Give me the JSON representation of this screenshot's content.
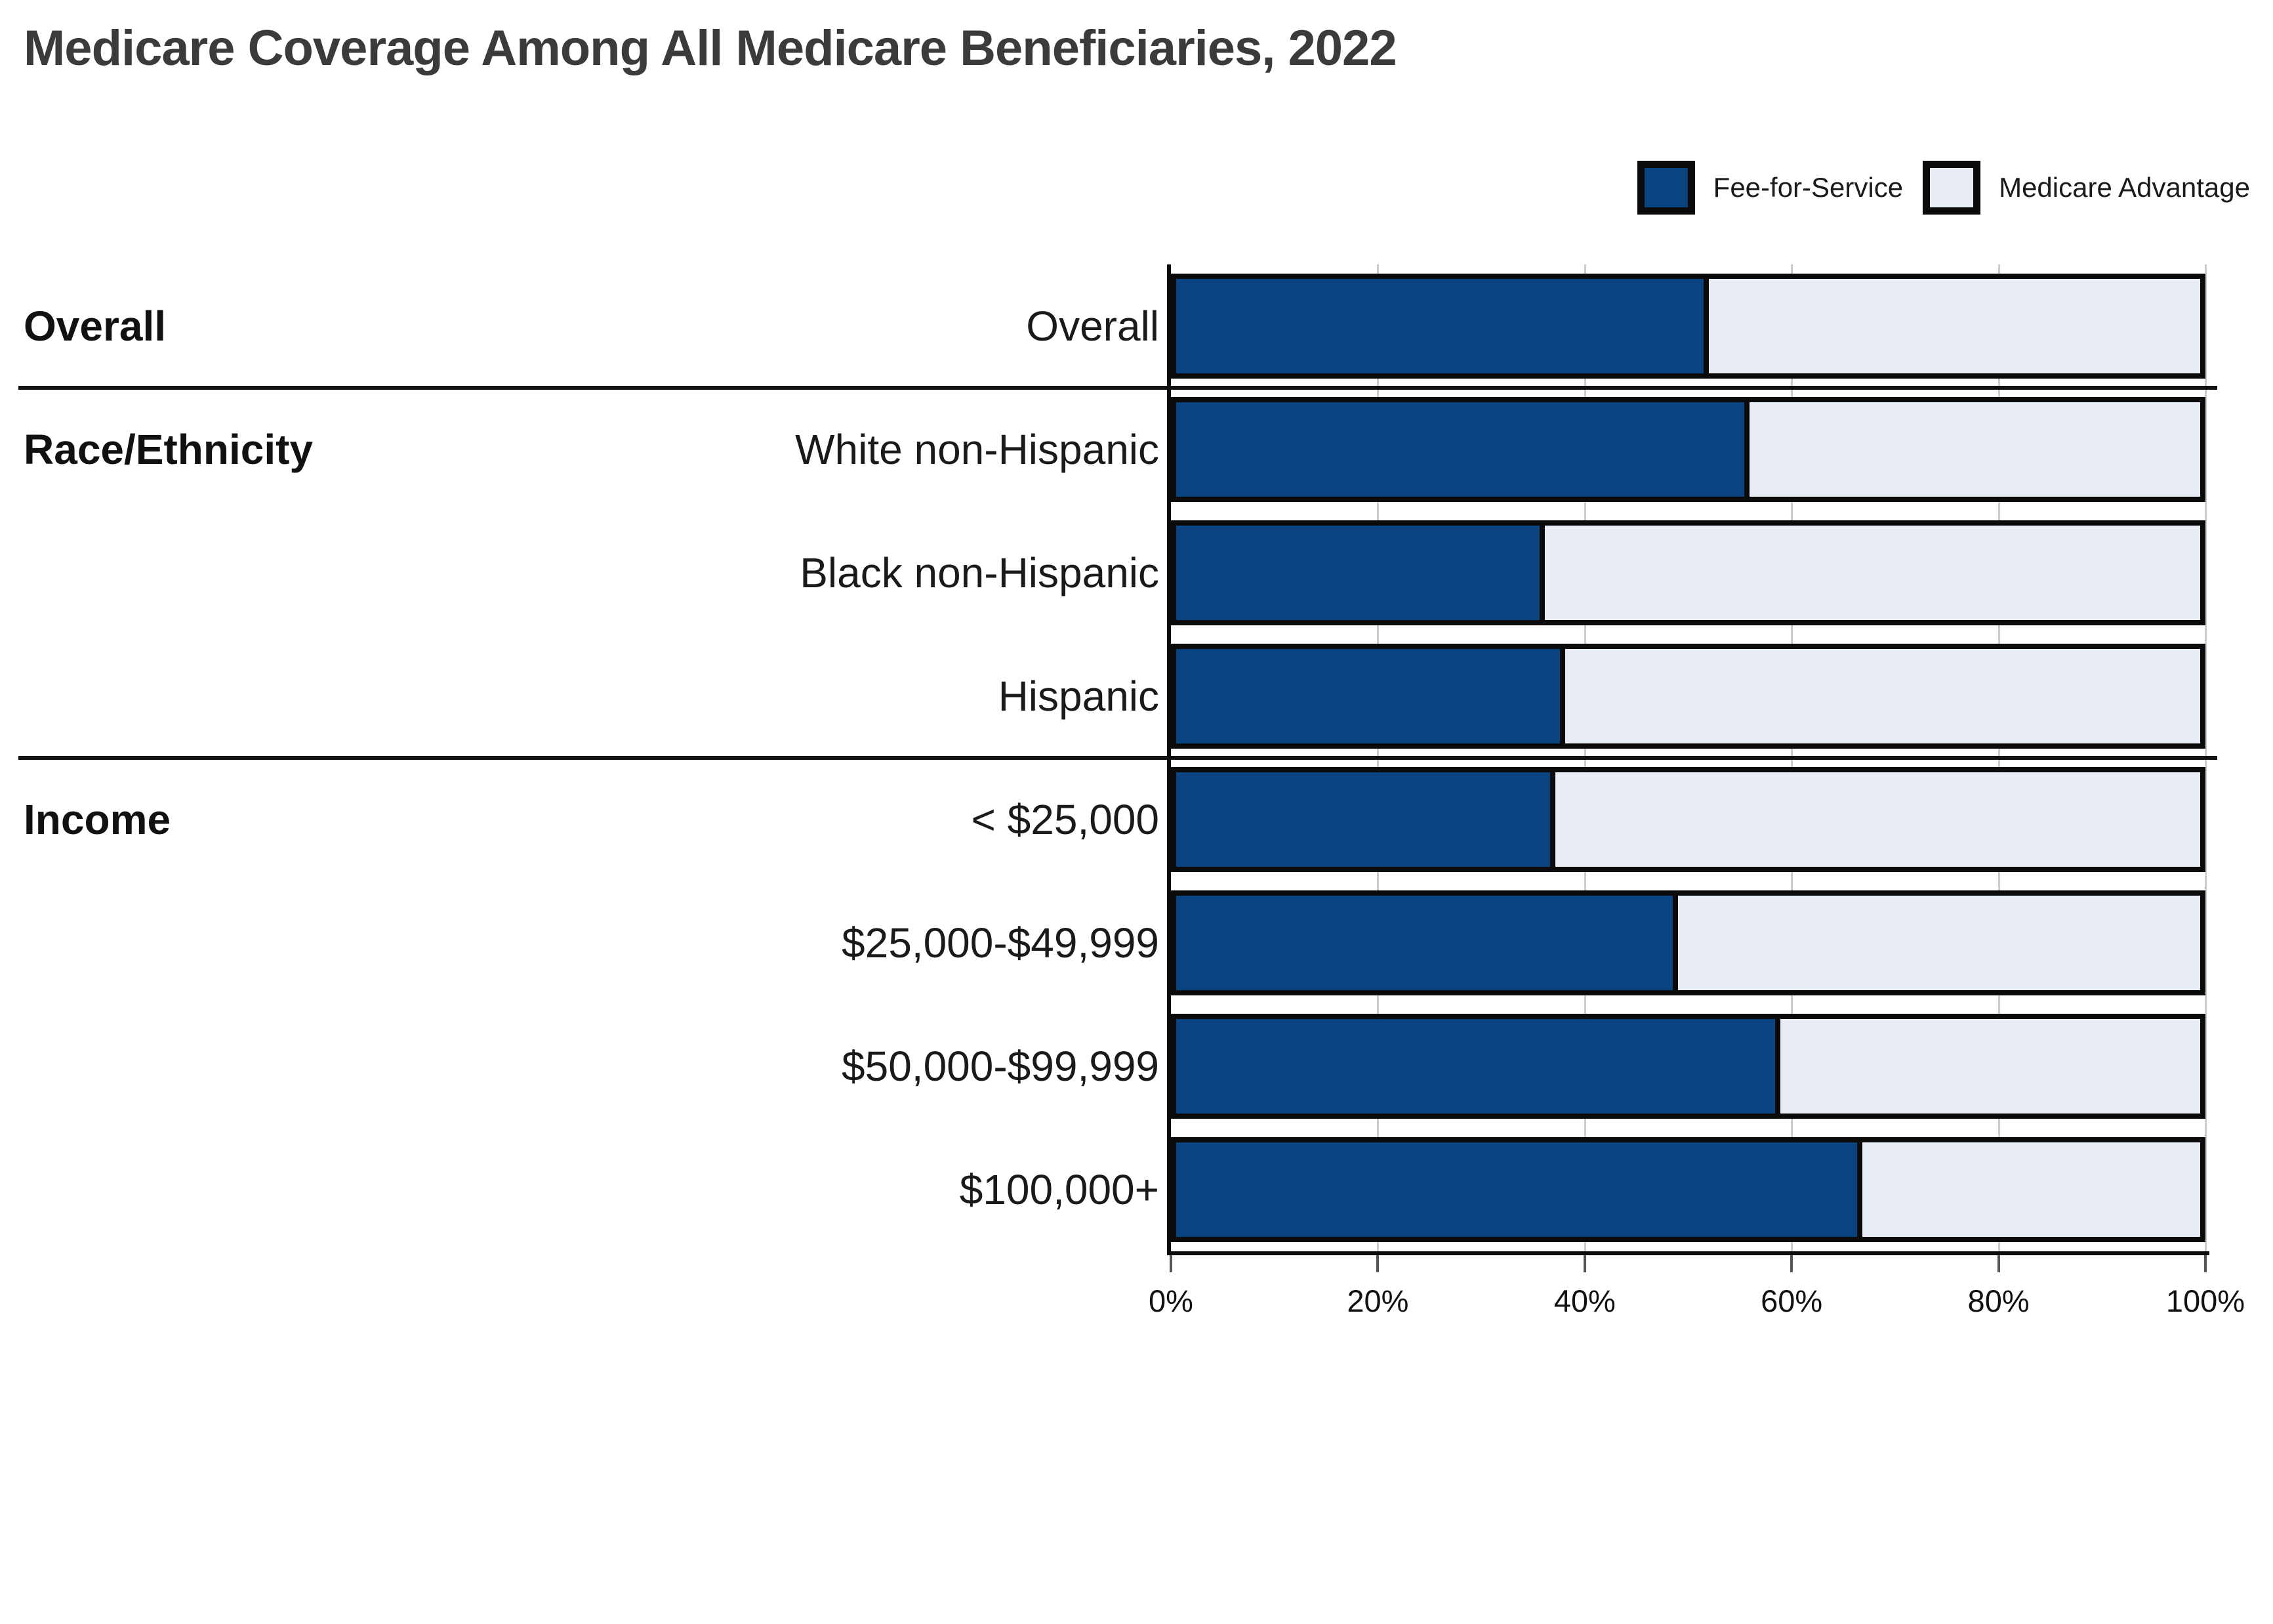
{
  "page": {
    "background": "#ffffff"
  },
  "header": {
    "title": "Medicare Coverage Among All Medicare Beneficiaries, 2022"
  },
  "legend": {
    "items": [
      {
        "label": "Fee-for-Service",
        "color": "#0a4480"
      },
      {
        "label": "Medicare Advantage",
        "color": "#e8ecf5"
      }
    ]
  },
  "chart_data": {
    "type": "bar",
    "orientation": "horizontal",
    "stacked": true,
    "title": "Medicare Coverage Among All Medicare Beneficiaries, 2022",
    "xlabel": "",
    "ylabel": "",
    "xlim": [
      0,
      100
    ],
    "unit": "percent",
    "grid": true,
    "legend_position": "top-right",
    "x_tick_labels": [
      "0%",
      "20%",
      "40%",
      "60%",
      "80%",
      "100%"
    ],
    "x_tick_values": [
      0,
      20,
      40,
      60,
      80,
      100
    ],
    "categories": [
      "Overall",
      "White non-Hispanic",
      "Black non-Hispanic",
      "Hispanic",
      "< $25,000",
      "$25,000-$49,999",
      "$50,000-$99,999",
      "$100,000+"
    ],
    "series": [
      {
        "name": "Fee-for-Service",
        "color": "#0a4480",
        "values": [
          52,
          56,
          36,
          38,
          37,
          49,
          59,
          67
        ]
      },
      {
        "name": "Medicare Advantage",
        "color": "#e8ecf5",
        "values": [
          48,
          44,
          64,
          62,
          63,
          51,
          41,
          33
        ]
      }
    ],
    "sections": [
      {
        "label": "Overall",
        "rows": [
          {
            "category": "Overall",
            "fee_for_service": 52,
            "medicare_advantage": 48
          }
        ]
      },
      {
        "label": "Race/Ethnicity",
        "rows": [
          {
            "category": "White non-Hispanic",
            "fee_for_service": 56,
            "medicare_advantage": 44
          },
          {
            "category": "Black non-Hispanic",
            "fee_for_service": 36,
            "medicare_advantage": 64
          },
          {
            "category": "Hispanic",
            "fee_for_service": 38,
            "medicare_advantage": 62
          }
        ]
      },
      {
        "label": "Income",
        "rows": [
          {
            "category": "< $25,000",
            "fee_for_service": 37,
            "medicare_advantage": 63
          },
          {
            "category": "$25,000-$49,999",
            "fee_for_service": 49,
            "medicare_advantage": 51
          },
          {
            "category": "$50,000-$99,999",
            "fee_for_service": 59,
            "medicare_advantage": 41
          },
          {
            "category": "$100,000+",
            "fee_for_service": 67,
            "medicare_advantage": 33
          }
        ]
      }
    ],
    "colors": {
      "fee_for_service": "#0a4480",
      "medicare_advantage": "#e8ecf5",
      "bar_border": "#0b0b0c",
      "gridline": "#cccccc",
      "axis": "#0b0b0c",
      "title_text": "#3b3b3b",
      "label_text": "#1a1a1a"
    }
  }
}
